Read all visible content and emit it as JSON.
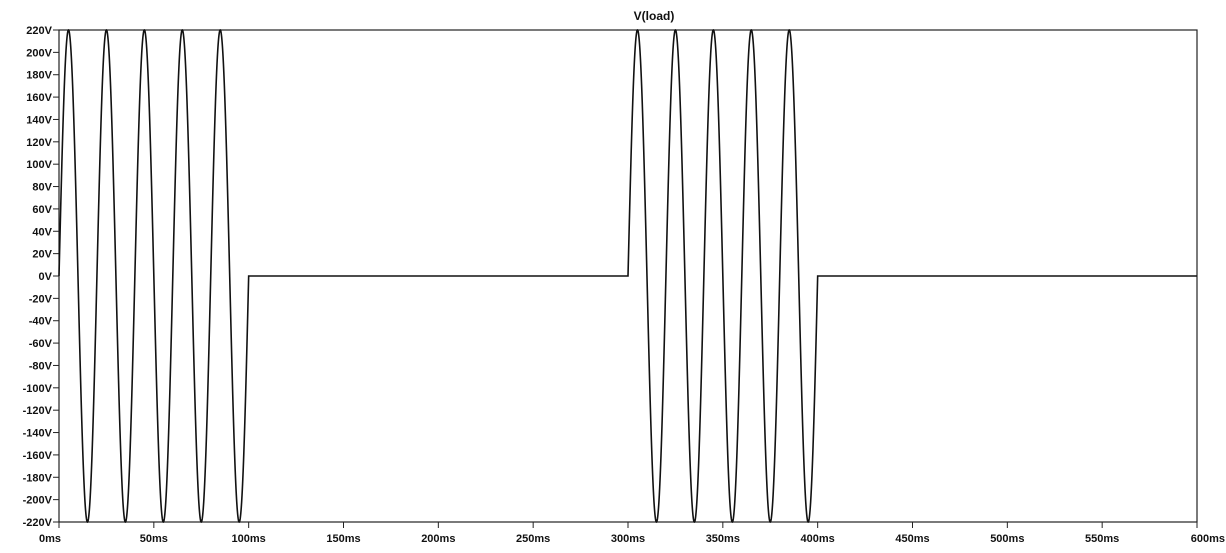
{
  "chart_data": {
    "type": "line",
    "title": "V(load)",
    "xlabel": "",
    "ylabel": "",
    "xlim": [
      0,
      600
    ],
    "ylim": [
      -220,
      220
    ],
    "x_unit": "ms",
    "y_unit": "V",
    "x_ticks": [
      0,
      50,
      100,
      150,
      200,
      250,
      300,
      350,
      400,
      450,
      500,
      550,
      600
    ],
    "x_tick_labels": [
      "0ms",
      "50ms",
      "100ms",
      "150ms",
      "200ms",
      "250ms",
      "300ms",
      "350ms",
      "400ms",
      "450ms",
      "500ms",
      "550ms",
      "600ms"
    ],
    "y_ticks": [
      220,
      200,
      180,
      160,
      140,
      120,
      100,
      80,
      60,
      40,
      20,
      0,
      -20,
      -40,
      -60,
      -80,
      -100,
      -120,
      -140,
      -160,
      -180,
      -200,
      -220
    ],
    "y_tick_labels": [
      "220V",
      "200V",
      "180V",
      "160V",
      "140V",
      "120V",
      "100V",
      "80V",
      "60V",
      "40V",
      "20V",
      "0V",
      "-20V",
      "-40V",
      "-60V",
      "-80V",
      "-100V",
      "-120V",
      "-140V",
      "-160V",
      "-180V",
      "-200V",
      "-220V"
    ],
    "grid": false,
    "series": [
      {
        "amplitude": 220,
        "frequency_hz": 50,
        "on_intervals_ms": [
          [
            0,
            100
          ],
          [
            300,
            400
          ]
        ],
        "off_value": 0,
        "color": "#111111"
      }
    ]
  }
}
